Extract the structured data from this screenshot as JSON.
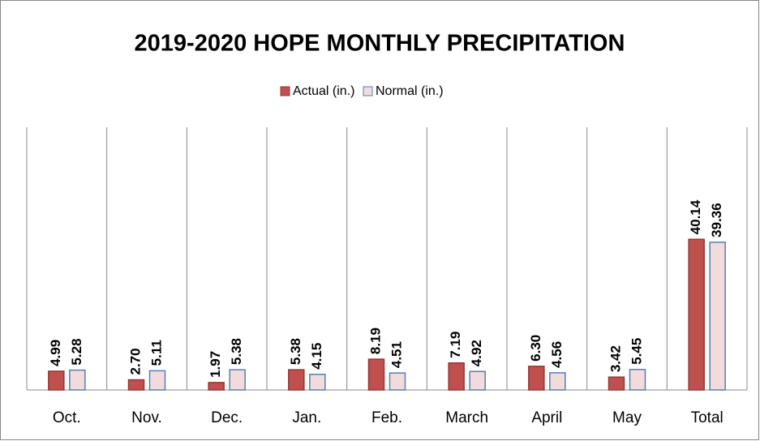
{
  "chart_data": {
    "type": "bar",
    "title": "2019-2020 HOPE MONTHLY PRECIPITATION",
    "categories": [
      "Oct.",
      "Nov.",
      "Dec.",
      "Jan.",
      "Feb.",
      "March",
      "April",
      "May",
      "Total"
    ],
    "series": [
      {
        "name": "Actual (in.)",
        "color": "#c0504d",
        "edgecolor": "#943634",
        "values": [
          4.99,
          2.7,
          1.97,
          5.38,
          8.19,
          7.19,
          6.3,
          3.42,
          40.14
        ],
        "value_labels": [
          "4.99",
          "2.70",
          "1.97",
          "5.38",
          "8.19",
          "7.19",
          "6.30",
          "3.42",
          "40.14"
        ]
      },
      {
        "name": "Normal (in.)",
        "color": "#f2dcdb",
        "edgecolor": "#4f81bd",
        "values": [
          5.28,
          5.11,
          5.38,
          4.15,
          4.51,
          4.92,
          4.56,
          5.45,
          39.36
        ],
        "value_labels": [
          "5.28",
          "5.11",
          "5.38",
          "4.15",
          "4.51",
          "4.92",
          "4.56",
          "5.45",
          "39.36"
        ]
      }
    ],
    "ylim": [
      0,
      70
    ],
    "legend": "top",
    "category_grid": true
  }
}
